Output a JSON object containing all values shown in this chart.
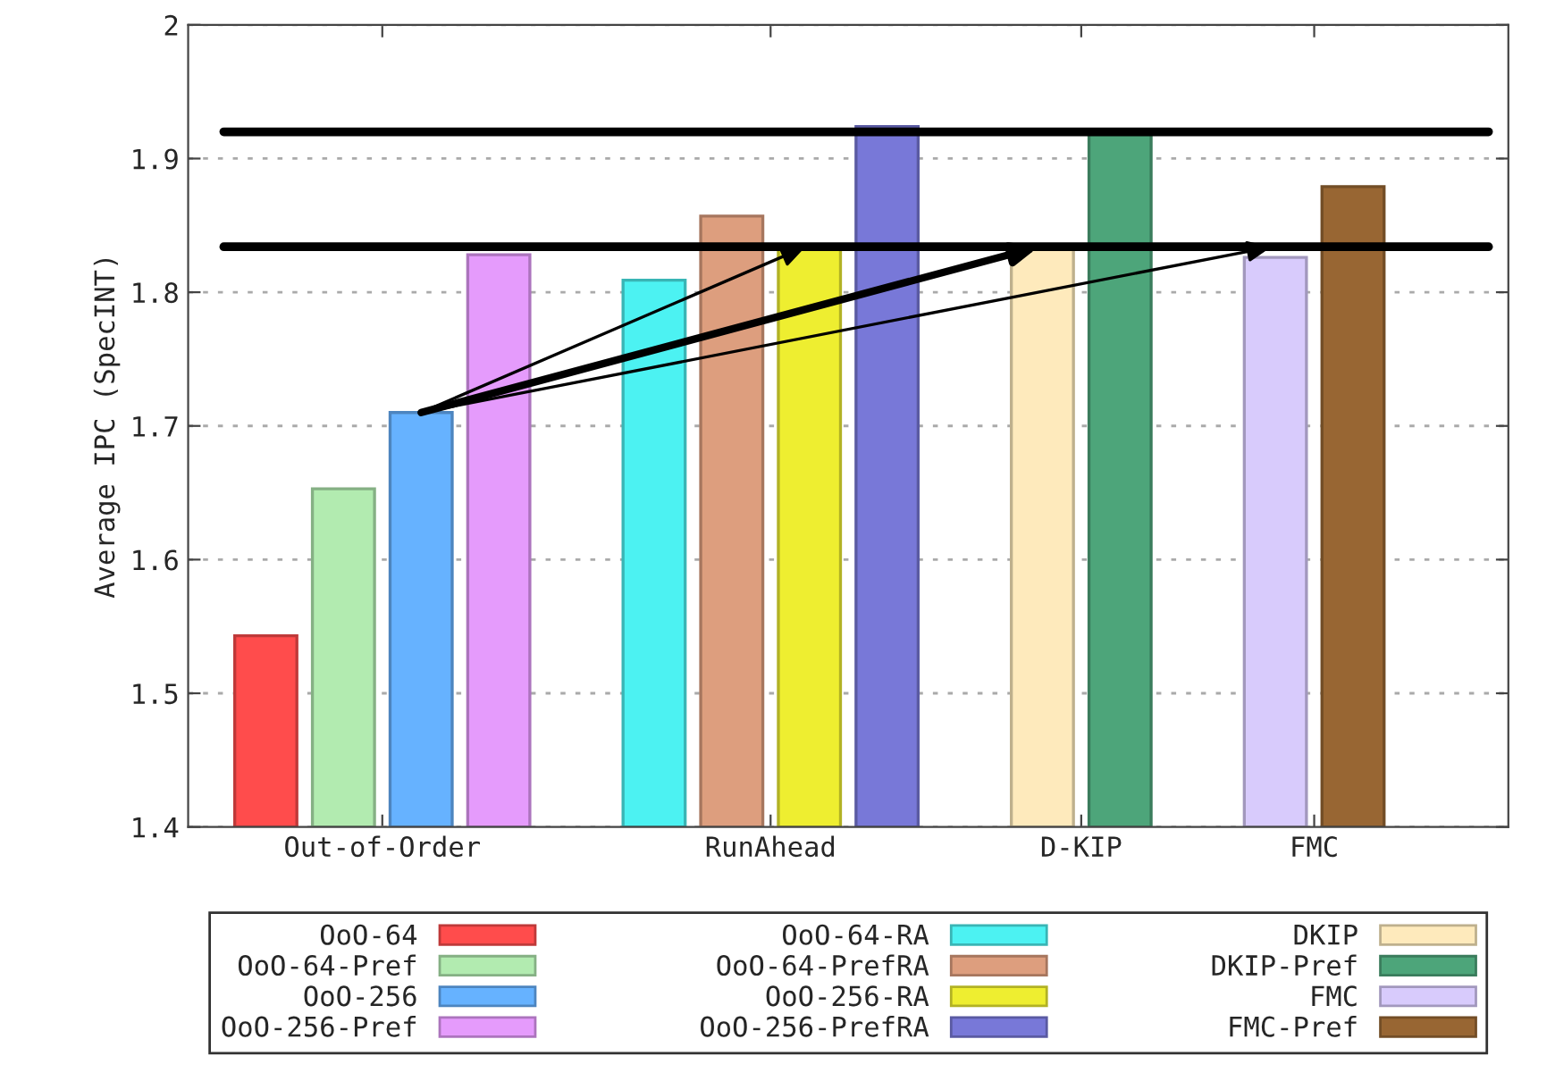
{
  "chart_data": {
    "type": "bar",
    "ylabel": "Average IPC (SpecINT)",
    "categories": [
      "Out-of-Order",
      "RunAhead",
      "D-KIP",
      "FMC"
    ],
    "series": [
      {
        "name": "OoO-64",
        "color": "#ff4c4c",
        "values": [
          1.543,
          null,
          null,
          null
        ]
      },
      {
        "name": "OoO-64-Pref",
        "color": "#b2ebb0",
        "values": [
          1.653,
          null,
          null,
          null
        ]
      },
      {
        "name": "OoO-256",
        "color": "#66b2ff",
        "values": [
          1.71,
          null,
          null,
          null
        ]
      },
      {
        "name": "OoO-256-Pref",
        "color": "#e59bfc",
        "values": [
          1.828,
          null,
          null,
          null
        ]
      },
      {
        "name": "OoO-64-RA",
        "color": "#4cf2f2",
        "values": [
          null,
          1.809,
          null,
          null
        ]
      },
      {
        "name": "OoO-64-PrefRA",
        "color": "#dd9e7e",
        "values": [
          null,
          1.857,
          null,
          null
        ]
      },
      {
        "name": "OoO-256-RA",
        "color": "#eeee30",
        "values": [
          null,
          1.834,
          null,
          null
        ]
      },
      {
        "name": "OoO-256-PrefRA",
        "color": "#7878d8",
        "values": [
          null,
          1.924,
          null,
          null
        ]
      },
      {
        "name": "DKIP",
        "color": "#feeabc",
        "values": [
          null,
          null,
          1.834,
          null
        ]
      },
      {
        "name": "DKIP-Pref",
        "color": "#4da57a",
        "values": [
          null,
          null,
          1.92,
          null
        ]
      },
      {
        "name": "FMC",
        "color": "#d8cbfc",
        "values": [
          null,
          null,
          null,
          1.826
        ]
      },
      {
        "name": "FMC-Pref",
        "color": "#986633",
        "values": [
          null,
          null,
          null,
          1.879
        ]
      }
    ],
    "ylim": [
      1.4,
      2
    ],
    "yticks": [
      1.4,
      1.5,
      1.6,
      1.7,
      1.8,
      1.9,
      2
    ],
    "grid": "y",
    "legend": "bottom",
    "ref_lines": [
      {
        "axis": "y",
        "value": 1.92,
        "color": "#000000"
      },
      {
        "axis": "y",
        "value": 1.834,
        "color": "#000000"
      }
    ]
  }
}
